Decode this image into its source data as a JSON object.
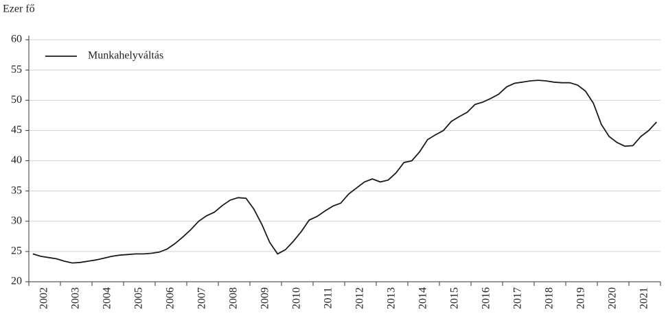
{
  "chart_data": {
    "type": "line",
    "y_axis_label": "Ezer fő",
    "categories": [
      "2002",
      null,
      null,
      null,
      "2003",
      null,
      null,
      null,
      "2004",
      null,
      null,
      null,
      "2005",
      null,
      null,
      null,
      "2006",
      null,
      null,
      null,
      "2007",
      null,
      null,
      null,
      "2008",
      null,
      null,
      null,
      "2009",
      null,
      null,
      null,
      "2010",
      null,
      null,
      null,
      "2011",
      null,
      null,
      null,
      "2012",
      null,
      null,
      null,
      "2013",
      null,
      null,
      null,
      "2014",
      null,
      null,
      null,
      "2015",
      null,
      null,
      null,
      "2016",
      null,
      null,
      null,
      "2017",
      null,
      null,
      null,
      "2018",
      null,
      null,
      null,
      "2019",
      null,
      null,
      null,
      "2020",
      null,
      null,
      null,
      "2021",
      null,
      null,
      null
    ],
    "series": [
      {
        "name": "Munkahelyváltás",
        "color": "#1a1a1a",
        "values": [
          24.6,
          24.2,
          24.0,
          23.8,
          23.4,
          23.1,
          23.2,
          23.4,
          23.6,
          23.9,
          24.2,
          24.4,
          24.5,
          24.6,
          24.6,
          24.7,
          24.9,
          25.4,
          26.3,
          27.4,
          28.6,
          30.0,
          30.9,
          31.5,
          32.6,
          33.5,
          33.9,
          33.8,
          32.0,
          29.5,
          26.5,
          24.6,
          25.3,
          26.7,
          28.3,
          30.2,
          30.8,
          31.7,
          32.5,
          33.0,
          34.5,
          35.5,
          36.5,
          37.0,
          36.5,
          36.8,
          38.0,
          39.7,
          40.0,
          41.5,
          43.5,
          44.3,
          45.0,
          46.5,
          47.3,
          48.0,
          49.3,
          49.7,
          50.3,
          51.0,
          52.2,
          52.8,
          53.0,
          53.2,
          53.3,
          53.2,
          53.0,
          52.9,
          52.9,
          52.5,
          51.5,
          49.5,
          46.0,
          44.0,
          43.0,
          42.4,
          42.5,
          44.0,
          45.0,
          46.4
        ]
      }
    ],
    "ylim": [
      20,
      60
    ],
    "yticks": [
      20,
      25,
      30,
      35,
      40,
      45,
      50,
      55,
      60
    ],
    "grid": true,
    "legend": "top-left"
  }
}
